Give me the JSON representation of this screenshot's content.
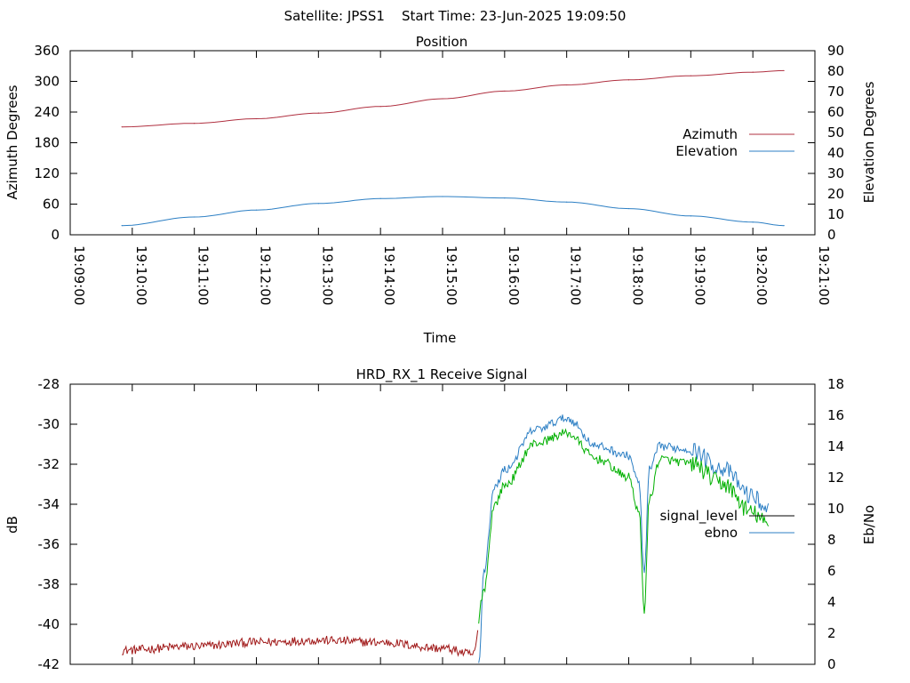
{
  "header": {
    "title": "Satellite: JPSS1    Start Time: 23-Jun-2025 19:09:50"
  },
  "colors": {
    "azimuth": "#b03040",
    "elevation": "#2c7fc4",
    "signal_level": "#000000",
    "ebno": "#2c7fc4",
    "signal_red": "#a01818",
    "signal_green": "#00b000"
  },
  "chart_data": [
    {
      "type": "line",
      "title": "Position",
      "xlabel": "Time",
      "ylabel": "Azimuth Degrees",
      "y2label": "Elevation Degrees",
      "xlim": [
        "19:09:00",
        "19:21:00"
      ],
      "xticks": [
        "19:09:00",
        "19:10:00",
        "19:11:00",
        "19:12:00",
        "19:13:00",
        "19:14:00",
        "19:15:00",
        "19:16:00",
        "19:17:00",
        "19:18:00",
        "19:19:00",
        "19:20:00",
        "19:21:00"
      ],
      "ylim": [
        0,
        360
      ],
      "yticks": [
        0,
        60,
        120,
        180,
        240,
        300,
        360
      ],
      "y2lim": [
        0,
        90
      ],
      "y2ticks": [
        0,
        10,
        20,
        30,
        40,
        50,
        60,
        70,
        80,
        90
      ],
      "legend": "right",
      "series": [
        {
          "name": "Azimuth",
          "axis": "y",
          "x": [
            "19:09:50",
            "19:11:00",
            "19:12:00",
            "19:13:00",
            "19:14:00",
            "19:15:00",
            "19:16:00",
            "19:17:00",
            "19:18:00",
            "19:19:00",
            "19:20:00",
            "19:20:30"
          ],
          "values": [
            211,
            218,
            227,
            238,
            251,
            266,
            281,
            293,
            303,
            311,
            318,
            321
          ]
        },
        {
          "name": "Elevation",
          "axis": "y2",
          "x": [
            "19:09:50",
            "19:11:00",
            "19:12:00",
            "19:13:00",
            "19:14:00",
            "19:15:00",
            "19:16:00",
            "19:17:00",
            "19:18:00",
            "19:19:00",
            "19:20:00",
            "19:20:30"
          ],
          "values": [
            4.5,
            8.7,
            12.1,
            15.3,
            17.7,
            18.7,
            18.0,
            16.0,
            12.8,
            9.2,
            6.2,
            4.5
          ]
        }
      ]
    },
    {
      "type": "line",
      "title": "HRD_RX_1 Receive Signal",
      "ylabel": "dB",
      "y2label": "Eb/No",
      "xlim": [
        "19:09:00",
        "19:21:00"
      ],
      "ylim": [
        -42,
        -28
      ],
      "yticks": [
        -42,
        -40,
        -38,
        -36,
        -34,
        -32,
        -30,
        -28
      ],
      "y2lim": [
        0,
        18
      ],
      "y2ticks": [
        0,
        2,
        4,
        6,
        8,
        10,
        12,
        14,
        16,
        18
      ],
      "legend": "right",
      "series": [
        {
          "name": "signal_level",
          "axis": "y",
          "x": [
            "19:09:50",
            "19:11:00",
            "19:12:00",
            "19:13:00",
            "19:14:00",
            "19:15:00",
            "19:15:30",
            "19:15:40",
            "19:15:50",
            "19:16:00",
            "19:16:30",
            "19:17:00",
            "19:17:30",
            "19:18:00",
            "19:18:10",
            "19:18:15",
            "19:18:20",
            "19:18:30",
            "19:19:00",
            "19:19:30",
            "19:20:00",
            "19:20:15"
          ],
          "values": [
            -41.3,
            -41.1,
            -40.9,
            -40.8,
            -40.9,
            -41.2,
            -41.5,
            -38,
            -33.8,
            -32.8,
            -30.7,
            -30.2,
            -31.5,
            -32.4,
            -34.2,
            -39.0,
            -33.5,
            -31.5,
            -31.7,
            -32.7,
            -34.2,
            -34.8
          ]
        },
        {
          "name": "ebno",
          "axis": "y2",
          "x": [
            "19:15:35",
            "19:15:40",
            "19:15:50",
            "19:16:00",
            "19:16:30",
            "19:17:00",
            "19:17:30",
            "19:18:00",
            "19:18:10",
            "19:18:15",
            "19:18:20",
            "19:18:30",
            "19:19:00",
            "19:19:30",
            "19:20:00",
            "19:20:15"
          ],
          "values": [
            0,
            6.0,
            11.3,
            12.5,
            15.1,
            15.8,
            14.0,
            13.4,
            11.6,
            5.8,
            12.5,
            14.0,
            13.8,
            12.6,
            10.8,
            9.9
          ]
        }
      ]
    }
  ]
}
